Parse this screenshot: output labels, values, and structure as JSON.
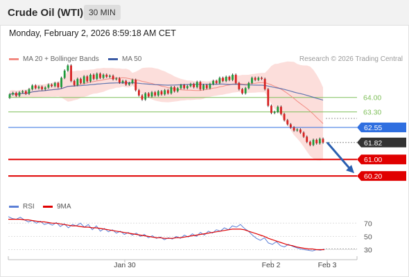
{
  "header": {
    "title": "Crude Oil (WTI)",
    "timeframe": "30 MIN"
  },
  "datetime": "Monday, February 2, 2026 8:59:18 AM CET",
  "legend": {
    "ma20": {
      "label": "MA 20 + Bollinger Bands",
      "color": "#f28b82"
    },
    "ma50": {
      "label": "MA 50",
      "color": "#3b5ba5"
    }
  },
  "credit": "Research © 2026 Trading Central",
  "rsi_legend": {
    "rsi": {
      "label": "RSI",
      "color": "#5b7fd6"
    },
    "ma9": {
      "label": "9MA",
      "color": "#e00000"
    }
  },
  "chart_data": [
    {
      "type": "candlestick",
      "ylim": [
        59.6,
        65.5
      ],
      "x_ticks": [
        "Jan 30",
        "Feb 2",
        "Feb 3"
      ],
      "levels": [
        {
          "label": "64.00",
          "value": 64.0,
          "color": "#7fbf5a",
          "style": "text"
        },
        {
          "label": "63.30",
          "value": 63.3,
          "color": "#7fbf5a",
          "style": "text"
        },
        {
          "label": "62.55",
          "value": 62.55,
          "color": "#2f6fe0",
          "style": "box"
        },
        {
          "label": "61.82",
          "value": 61.82,
          "color": "#333333",
          "style": "box"
        },
        {
          "label": "61.00",
          "value": 61.0,
          "color": "#e00000",
          "style": "box"
        },
        {
          "label": "60.20",
          "value": 60.2,
          "color": "#e00000",
          "style": "box"
        }
      ],
      "candles": [
        [
          63.99,
          64.15
        ],
        [
          64.15,
          64.22
        ],
        [
          64.22,
          64.08
        ],
        [
          64.08,
          64.25
        ],
        [
          64.25,
          64.3
        ],
        [
          64.3,
          64.18
        ],
        [
          64.18,
          64.4
        ],
        [
          64.4,
          64.58
        ],
        [
          64.58,
          64.45
        ],
        [
          64.45,
          64.52
        ],
        [
          64.52,
          64.4
        ],
        [
          64.4,
          64.48
        ],
        [
          64.48,
          64.62
        ],
        [
          64.62,
          64.55
        ],
        [
          64.55,
          64.7
        ],
        [
          64.7,
          64.5
        ],
        [
          64.5,
          64.95
        ],
        [
          64.95,
          65.3
        ],
        [
          65.3,
          65.55
        ],
        [
          65.55,
          64.8
        ],
        [
          64.8,
          64.6
        ],
        [
          64.6,
          64.9
        ],
        [
          64.9,
          64.7
        ],
        [
          64.7,
          65.02
        ],
        [
          65.02,
          64.78
        ],
        [
          64.78,
          65.1
        ],
        [
          65.1,
          64.9
        ],
        [
          64.9,
          65.15
        ],
        [
          65.15,
          64.95
        ],
        [
          64.95,
          65.1
        ],
        [
          65.1,
          65.0
        ],
        [
          65.0,
          65.05
        ],
        [
          65.05,
          64.88
        ],
        [
          64.88,
          64.92
        ],
        [
          64.92,
          64.72
        ],
        [
          64.72,
          64.8
        ],
        [
          64.8,
          64.62
        ],
        [
          64.62,
          64.7
        ],
        [
          64.7,
          64.85
        ],
        [
          64.85,
          64.35
        ],
        [
          64.35,
          64.1
        ],
        [
          64.1,
          63.9
        ],
        [
          63.9,
          64.2
        ],
        [
          64.2,
          64.05
        ],
        [
          64.05,
          64.25
        ],
        [
          64.25,
          64.1
        ],
        [
          64.1,
          64.3
        ],
        [
          64.3,
          64.15
        ],
        [
          64.15,
          64.35
        ],
        [
          64.35,
          64.2
        ],
        [
          64.2,
          64.5
        ],
        [
          64.5,
          64.3
        ],
        [
          64.3,
          64.45
        ],
        [
          64.45,
          64.6
        ],
        [
          64.6,
          64.45
        ],
        [
          64.45,
          64.55
        ],
        [
          64.55,
          64.65
        ],
        [
          64.65,
          64.5
        ],
        [
          64.5,
          64.75
        ],
        [
          64.75,
          64.4
        ],
        [
          64.4,
          64.6
        ],
        [
          64.6,
          64.45
        ],
        [
          64.45,
          64.65
        ],
        [
          64.65,
          64.8
        ],
        [
          64.8,
          64.7
        ],
        [
          64.7,
          64.95
        ],
        [
          64.95,
          64.8
        ],
        [
          64.8,
          65.0
        ],
        [
          65.0,
          64.85
        ],
        [
          64.85,
          65.1
        ],
        [
          65.1,
          64.7
        ],
        [
          64.7,
          64.4
        ],
        [
          64.4,
          64.2
        ],
        [
          64.2,
          64.45
        ],
        [
          64.45,
          64.7
        ],
        [
          64.7,
          64.95
        ],
        [
          64.95,
          64.85
        ],
        [
          64.85,
          64.95
        ],
        [
          64.95,
          64.9
        ],
        [
          64.9,
          64.4
        ],
        [
          64.4,
          63.6
        ],
        [
          63.6,
          63.25
        ],
        [
          63.25,
          63.3
        ],
        [
          63.3,
          63.55
        ],
        [
          63.55,
          63.2
        ],
        [
          63.2,
          62.9
        ],
        [
          62.9,
          62.7
        ],
        [
          62.7,
          62.55
        ],
        [
          62.55,
          62.4
        ],
        [
          62.4,
          62.45
        ],
        [
          62.45,
          62.3
        ],
        [
          62.3,
          62.1
        ],
        [
          62.1,
          61.85
        ],
        [
          61.85,
          61.7
        ],
        [
          61.7,
          61.95
        ],
        [
          61.95,
          61.78
        ],
        [
          61.78,
          62.0
        ],
        [
          62.0,
          61.82
        ]
      ]
    },
    {
      "type": "line",
      "ylim": [
        20,
        85
      ],
      "y_ticks": [
        70,
        50,
        30
      ],
      "series": [
        {
          "name": "RSI",
          "values": [
            80,
            77,
            76,
            79,
            75,
            72,
            74,
            70,
            73,
            68,
            70,
            67,
            71,
            65,
            69,
            63,
            68,
            66,
            70,
            64,
            68,
            60,
            66,
            58,
            62,
            57,
            60,
            55,
            58,
            53,
            56,
            52,
            55,
            50,
            53,
            48,
            51,
            47,
            49,
            45,
            48,
            46,
            50,
            47,
            52,
            49,
            54,
            50,
            56,
            52,
            58,
            55,
            60,
            58,
            63,
            60,
            66,
            64,
            68,
            62,
            58,
            52,
            47,
            44,
            48,
            40,
            38,
            42,
            36,
            34,
            38,
            35,
            33,
            31,
            30,
            29,
            28,
            30,
            29,
            31
          ]
        },
        {
          "name": "9MA",
          "values": [
            76,
            76,
            76,
            76,
            75,
            75,
            74,
            73,
            72,
            72,
            71,
            70,
            70,
            69,
            68,
            67,
            66,
            66,
            65,
            64,
            64,
            63,
            63,
            62,
            61,
            60,
            59,
            58,
            57,
            56,
            55,
            54,
            53,
            52,
            51,
            50,
            49,
            48,
            48,
            47,
            47,
            47,
            48,
            48,
            49,
            50,
            51,
            52,
            53,
            54,
            55,
            56,
            57,
            58,
            59,
            60,
            61,
            61,
            61,
            60,
            58,
            56,
            54,
            52,
            50,
            47,
            45,
            43,
            41,
            39,
            37,
            36,
            34,
            33,
            32,
            31,
            31,
            30,
            30,
            30
          ]
        }
      ]
    }
  ]
}
